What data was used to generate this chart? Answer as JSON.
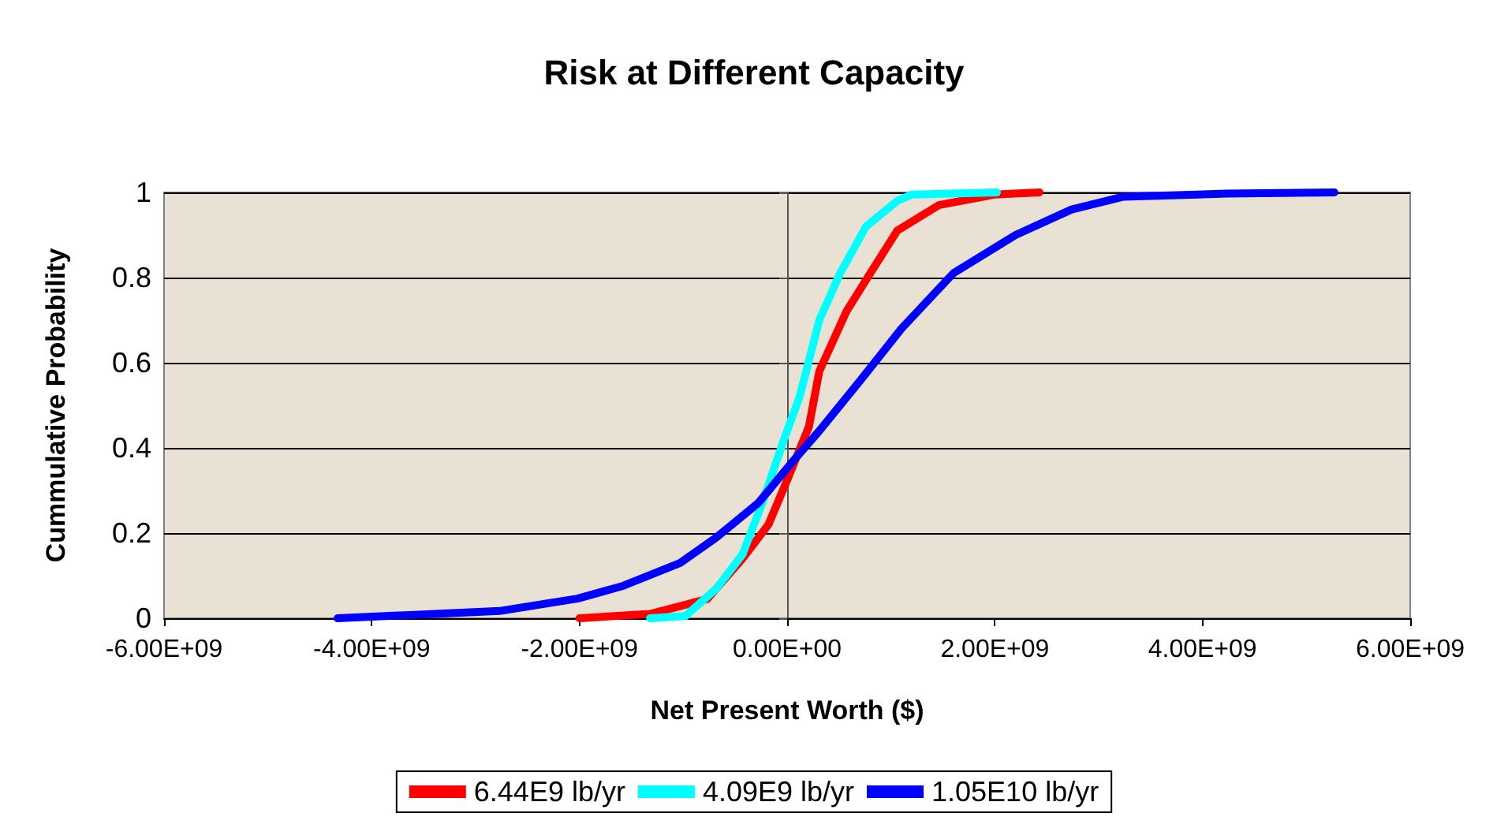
{
  "chart_data": {
    "type": "line",
    "title": "Risk at Different Capacity",
    "xlabel": "Net Present Worth ($)",
    "ylabel": "Cummulative Probability",
    "xlim": [
      -6000000000.0,
      6000000000.0
    ],
    "xticks": [
      {
        "value": -6000000000.0,
        "label": "-6.00E+09"
      },
      {
        "value": -4000000000.0,
        "label": "-4.00E+09"
      },
      {
        "value": -2000000000.0,
        "label": "-2.00E+09"
      },
      {
        "value": 0,
        "label": "0.00E+00"
      },
      {
        "value": 2000000000.0,
        "label": "2.00E+09"
      },
      {
        "value": 4000000000.0,
        "label": "4.00E+09"
      },
      {
        "value": 6000000000.0,
        "label": "6.00E+09"
      }
    ],
    "ylim": [
      0,
      1
    ],
    "yticks": [
      0,
      0.2,
      0.4,
      0.6,
      0.8,
      1
    ],
    "grid": "y",
    "legend": "bottom",
    "marker": "none",
    "line_style": "solid",
    "series": [
      {
        "name": "6.44E9 lb/yr",
        "color": "#ff0000",
        "x": [
          -2000000000.0,
          -1320000000.0,
          -770000000.0,
          -430000000.0,
          -180000000.0,
          10000000.0,
          210000000.0,
          310000000.0,
          570000000.0,
          800000000.0,
          1060000000.0,
          1460000000.0,
          2000000000.0,
          2430000000.0
        ],
        "values": [
          0,
          0.01,
          0.045,
          0.14,
          0.22,
          0.33,
          0.45,
          0.58,
          0.72,
          0.81,
          0.91,
          0.97,
          0.995,
          1
        ]
      },
      {
        "name": "4.09E9 lb/yr",
        "color": "#00ffff",
        "x": [
          -1320000000.0,
          -980000000.0,
          -680000000.0,
          -430000000.0,
          -240000000.0,
          -30000000.0,
          120000000.0,
          310000000.0,
          510000000.0,
          760000000.0,
          1060000000.0,
          1200000000.0,
          2020000000.0
        ],
        "values": [
          0,
          0.005,
          0.07,
          0.15,
          0.27,
          0.42,
          0.52,
          0.7,
          0.81,
          0.92,
          0.98,
          0.995,
          1
        ]
      },
      {
        "name": "1.05E10 lb/yr",
        "color": "#0000ff",
        "x": [
          -4330000000.0,
          -2770000000.0,
          -2020000000.0,
          -1580000000.0,
          -1030000000.0,
          -680000000.0,
          -280000000.0,
          60000000.0,
          310000000.0,
          710000000.0,
          1100000000.0,
          1600000000.0,
          2200000000.0,
          2740000000.0,
          3240000000.0,
          4230000000.0,
          5270000000.0
        ],
        "values": [
          0,
          0.017,
          0.046,
          0.076,
          0.13,
          0.19,
          0.27,
          0.37,
          0.44,
          0.56,
          0.68,
          0.81,
          0.9,
          0.96,
          0.99,
          0.997,
          1
        ]
      }
    ]
  }
}
